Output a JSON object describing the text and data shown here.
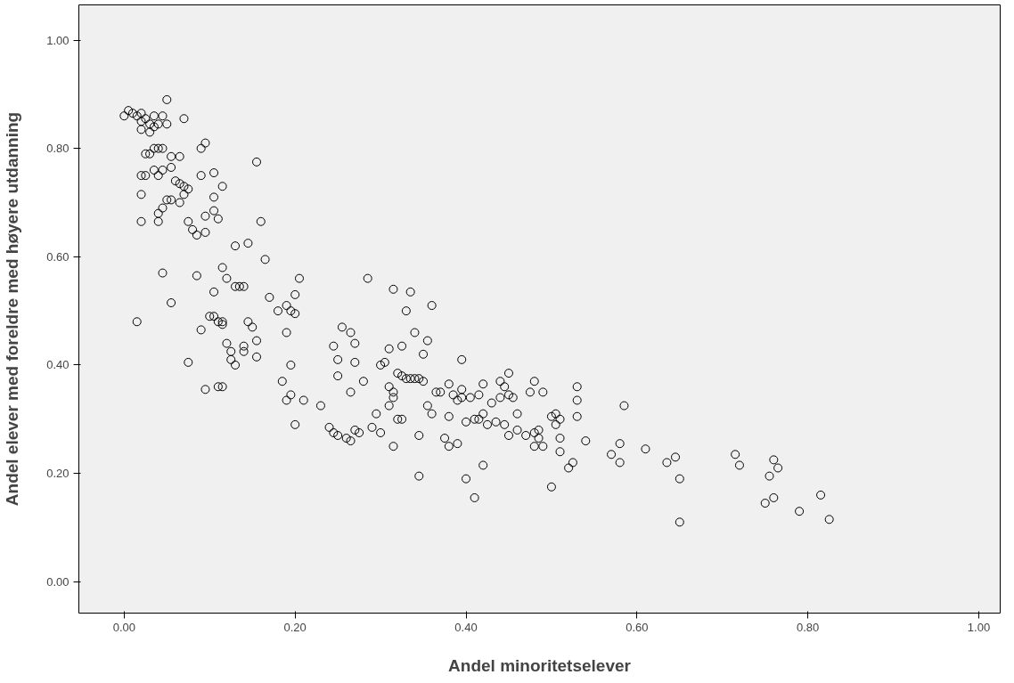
{
  "chart_data": {
    "type": "scatter",
    "xlabel": "Andel minoritetselever",
    "ylabel": "Andel elever med foreldre med høyere utdanning",
    "marker": "circle",
    "grid": false,
    "xlim": [
      -0.053,
      1.025
    ],
    "ylim": [
      -0.058,
      1.065
    ],
    "xticks": [
      {
        "value": 0,
        "label": "0.00"
      },
      {
        "value": 0.2,
        "label": "0.20"
      },
      {
        "value": 0.4,
        "label": "0.40"
      },
      {
        "value": 0.6,
        "label": "0.60"
      },
      {
        "value": 0.8,
        "label": "0.80"
      },
      {
        "value": 1,
        "label": "1.00"
      }
    ],
    "yticks": [
      {
        "value": 0,
        "label": "0.00"
      },
      {
        "value": 0.2,
        "label": "0.20"
      },
      {
        "value": 0.4,
        "label": "0.40"
      },
      {
        "value": 0.6,
        "label": "0.60"
      },
      {
        "value": 0.8,
        "label": "0.80"
      },
      {
        "value": 1,
        "label": "1.00"
      }
    ],
    "series": [
      {
        "color": "#000000",
        "x": [
          0.0,
          0.005,
          0.01,
          0.015,
          0.02,
          0.02,
          0.025,
          0.035,
          0.045,
          0.03,
          0.035,
          0.04,
          0.05,
          0.05,
          0.07,
          0.02,
          0.03,
          0.025,
          0.03,
          0.035,
          0.04,
          0.045,
          0.055,
          0.065,
          0.09,
          0.095,
          0.02,
          0.025,
          0.035,
          0.04,
          0.045,
          0.055,
          0.06,
          0.065,
          0.07,
          0.075,
          0.09,
          0.105,
          0.115,
          0.02,
          0.05,
          0.055,
          0.065,
          0.07,
          0.105,
          0.02,
          0.04,
          0.04,
          0.045,
          0.075,
          0.08,
          0.085,
          0.095,
          0.095,
          0.105,
          0.11,
          0.155,
          0.16,
          0.13,
          0.145,
          0.165,
          0.015,
          0.045,
          0.055,
          0.075,
          0.085,
          0.09,
          0.095,
          0.1,
          0.105,
          0.105,
          0.11,
          0.115,
          0.115,
          0.11,
          0.115,
          0.115,
          0.12,
          0.12,
          0.125,
          0.125,
          0.13,
          0.13,
          0.135,
          0.14,
          0.14,
          0.14,
          0.145,
          0.15,
          0.155,
          0.155,
          0.17,
          0.18,
          0.19,
          0.19,
          0.195,
          0.2,
          0.2,
          0.205,
          0.185,
          0.19,
          0.195,
          0.195,
          0.2,
          0.21,
          0.23,
          0.24,
          0.245,
          0.245,
          0.25,
          0.25,
          0.25,
          0.255,
          0.26,
          0.265,
          0.265,
          0.265,
          0.27,
          0.27,
          0.27,
          0.275,
          0.28,
          0.285,
          0.29,
          0.295,
          0.3,
          0.3,
          0.305,
          0.31,
          0.31,
          0.31,
          0.315,
          0.315,
          0.315,
          0.315,
          0.32,
          0.32,
          0.325,
          0.325,
          0.325,
          0.33,
          0.33,
          0.335,
          0.335,
          0.34,
          0.34,
          0.345,
          0.345,
          0.345,
          0.35,
          0.35,
          0.355,
          0.355,
          0.36,
          0.36,
          0.365,
          0.37,
          0.375,
          0.38,
          0.38,
          0.38,
          0.385,
          0.39,
          0.39,
          0.395,
          0.395,
          0.395,
          0.4,
          0.4,
          0.405,
          0.41,
          0.41,
          0.415,
          0.415,
          0.42,
          0.42,
          0.42,
          0.425,
          0.43,
          0.435,
          0.44,
          0.44,
          0.445,
          0.445,
          0.45,
          0.45,
          0.45,
          0.455,
          0.46,
          0.46,
          0.47,
          0.475,
          0.48,
          0.48,
          0.48,
          0.485,
          0.485,
          0.49,
          0.49,
          0.5,
          0.5,
          0.505,
          0.505,
          0.51,
          0.51,
          0.51,
          0.52,
          0.525,
          0.53,
          0.53,
          0.53,
          0.54,
          0.57,
          0.58,
          0.58,
          0.585,
          0.61,
          0.635,
          0.645,
          0.65,
          0.65,
          0.715,
          0.72,
          0.75,
          0.755,
          0.76,
          0.76,
          0.765,
          0.79,
          0.815,
          0.825
        ],
        "values": [
          0.86,
          0.87,
          0.865,
          0.86,
          0.85,
          0.865,
          0.855,
          0.86,
          0.86,
          0.845,
          0.84,
          0.845,
          0.845,
          0.89,
          0.855,
          0.835,
          0.83,
          0.79,
          0.79,
          0.8,
          0.8,
          0.8,
          0.785,
          0.785,
          0.8,
          0.81,
          0.75,
          0.75,
          0.76,
          0.75,
          0.76,
          0.765,
          0.74,
          0.735,
          0.73,
          0.725,
          0.75,
          0.755,
          0.73,
          0.715,
          0.705,
          0.705,
          0.7,
          0.715,
          0.71,
          0.665,
          0.665,
          0.68,
          0.69,
          0.665,
          0.65,
          0.64,
          0.645,
          0.675,
          0.685,
          0.67,
          0.775,
          0.665,
          0.62,
          0.625,
          0.595,
          0.48,
          0.57,
          0.515,
          0.405,
          0.565,
          0.465,
          0.355,
          0.49,
          0.49,
          0.535,
          0.48,
          0.48,
          0.475,
          0.36,
          0.36,
          0.58,
          0.56,
          0.44,
          0.425,
          0.41,
          0.4,
          0.545,
          0.545,
          0.545,
          0.425,
          0.435,
          0.48,
          0.47,
          0.445,
          0.415,
          0.525,
          0.5,
          0.51,
          0.46,
          0.5,
          0.53,
          0.495,
          0.56,
          0.37,
          0.335,
          0.345,
          0.4,
          0.29,
          0.335,
          0.325,
          0.285,
          0.435,
          0.275,
          0.41,
          0.38,
          0.27,
          0.47,
          0.265,
          0.26,
          0.35,
          0.46,
          0.44,
          0.405,
          0.28,
          0.275,
          0.37,
          0.56,
          0.285,
          0.31,
          0.4,
          0.275,
          0.405,
          0.325,
          0.43,
          0.36,
          0.34,
          0.35,
          0.54,
          0.25,
          0.3,
          0.385,
          0.38,
          0.435,
          0.3,
          0.375,
          0.5,
          0.535,
          0.375,
          0.375,
          0.46,
          0.27,
          0.375,
          0.195,
          0.37,
          0.42,
          0.445,
          0.325,
          0.51,
          0.31,
          0.35,
          0.35,
          0.265,
          0.25,
          0.305,
          0.365,
          0.345,
          0.335,
          0.255,
          0.41,
          0.34,
          0.355,
          0.295,
          0.19,
          0.34,
          0.155,
          0.3,
          0.3,
          0.345,
          0.365,
          0.31,
          0.215,
          0.29,
          0.33,
          0.295,
          0.34,
          0.37,
          0.36,
          0.29,
          0.385,
          0.345,
          0.27,
          0.34,
          0.31,
          0.28,
          0.27,
          0.35,
          0.37,
          0.275,
          0.25,
          0.28,
          0.265,
          0.25,
          0.35,
          0.305,
          0.175,
          0.29,
          0.31,
          0.3,
          0.265,
          0.24,
          0.21,
          0.22,
          0.305,
          0.335,
          0.36,
          0.26,
          0.235,
          0.255,
          0.22,
          0.325,
          0.245,
          0.22,
          0.23,
          0.19,
          0.11,
          0.235,
          0.215,
          0.145,
          0.195,
          0.225,
          0.155,
          0.21,
          0.13,
          0.16,
          0.115
        ]
      }
    ]
  }
}
